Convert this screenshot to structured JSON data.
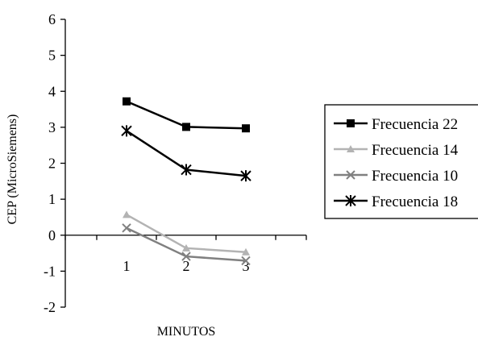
{
  "chart_data": {
    "type": "line",
    "title": "",
    "xlabel": "MINUTOS",
    "ylabel": "CEP (MicroSiemens)",
    "categories": [
      "1",
      "2",
      "3"
    ],
    "x": [
      1,
      2,
      3
    ],
    "ylim": [
      -2,
      6
    ],
    "yticks": [
      -2,
      -1,
      0,
      1,
      2,
      3,
      4,
      5,
      6
    ],
    "grid": false,
    "legend": "right",
    "series": [
      {
        "name": "Frecuencia 22",
        "values": [
          3.72,
          3.01,
          2.97
        ],
        "color": "#000000",
        "marker": "square"
      },
      {
        "name": "Frecuencia 14",
        "values": [
          0.57,
          -0.36,
          -0.47
        ],
        "color": "#b3b3b3",
        "marker": "triangle"
      },
      {
        "name": "Frecuencia 10",
        "values": [
          0.2,
          -0.59,
          -0.71
        ],
        "color": "#808080",
        "marker": "x"
      },
      {
        "name": "Frecuencia 18",
        "values": [
          2.9,
          1.82,
          1.65
        ],
        "color": "#000000",
        "marker": "star"
      }
    ]
  }
}
